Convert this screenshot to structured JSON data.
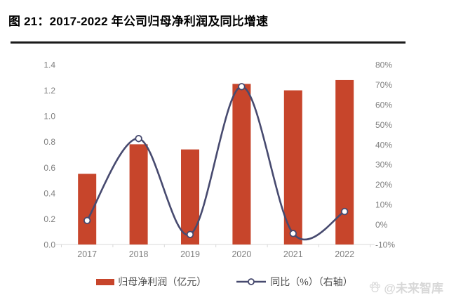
{
  "figure": {
    "title": "图 21：2017-2022 年公司归母净利润及同比增速"
  },
  "chart_data": {
    "type": "bar+line",
    "categories": [
      "2017",
      "2018",
      "2019",
      "2020",
      "2021",
      "2022"
    ],
    "series": [
      {
        "name": "归母净利润（亿元）",
        "type": "bar",
        "axis": "left",
        "values": [
          0.55,
          0.78,
          0.74,
          1.25,
          1.2,
          1.28
        ],
        "color": "#c7452b"
      },
      {
        "name": "同比（%）（右轴）",
        "type": "line",
        "axis": "right",
        "values": [
          2,
          43,
          -5,
          69,
          -4.5,
          6.5
        ],
        "color": "#474a6f",
        "marker": "circle-white-fill"
      }
    ],
    "left_axis": {
      "min": 0,
      "max": 1.4,
      "step": 0.2,
      "ticks": [
        "1.4",
        "1.2",
        "1.0",
        "0.8",
        "0.6",
        "0.4",
        "0.2",
        "0.0"
      ]
    },
    "right_axis": {
      "min": -10,
      "max": 80,
      "step": 10,
      "ticks": [
        "80%",
        "70%",
        "60%",
        "50%",
        "40%",
        "30%",
        "20%",
        "10%",
        "0%",
        "-10%"
      ]
    },
    "grid": false,
    "legend_position": "bottom",
    "smooth_line": true
  },
  "legend": {
    "items": [
      {
        "label": "归母净利润（亿元）",
        "swatch": "bar"
      },
      {
        "label": "同比（%）（右轴）",
        "swatch": "line-marker"
      }
    ]
  },
  "watermark": {
    "icon": "paw-icon",
    "text": "@未来智库"
  },
  "colors": {
    "bar": "#c7452b",
    "line": "#474a6f",
    "marker_fill": "#ffffff",
    "axis_text": "#7f7f7f",
    "axis_line": "#d9d9d9",
    "legend_text": "#4d4d4d",
    "title_text": "#000000",
    "divider": "#1a1a1a",
    "watermark_text": "#d8d8d8"
  }
}
